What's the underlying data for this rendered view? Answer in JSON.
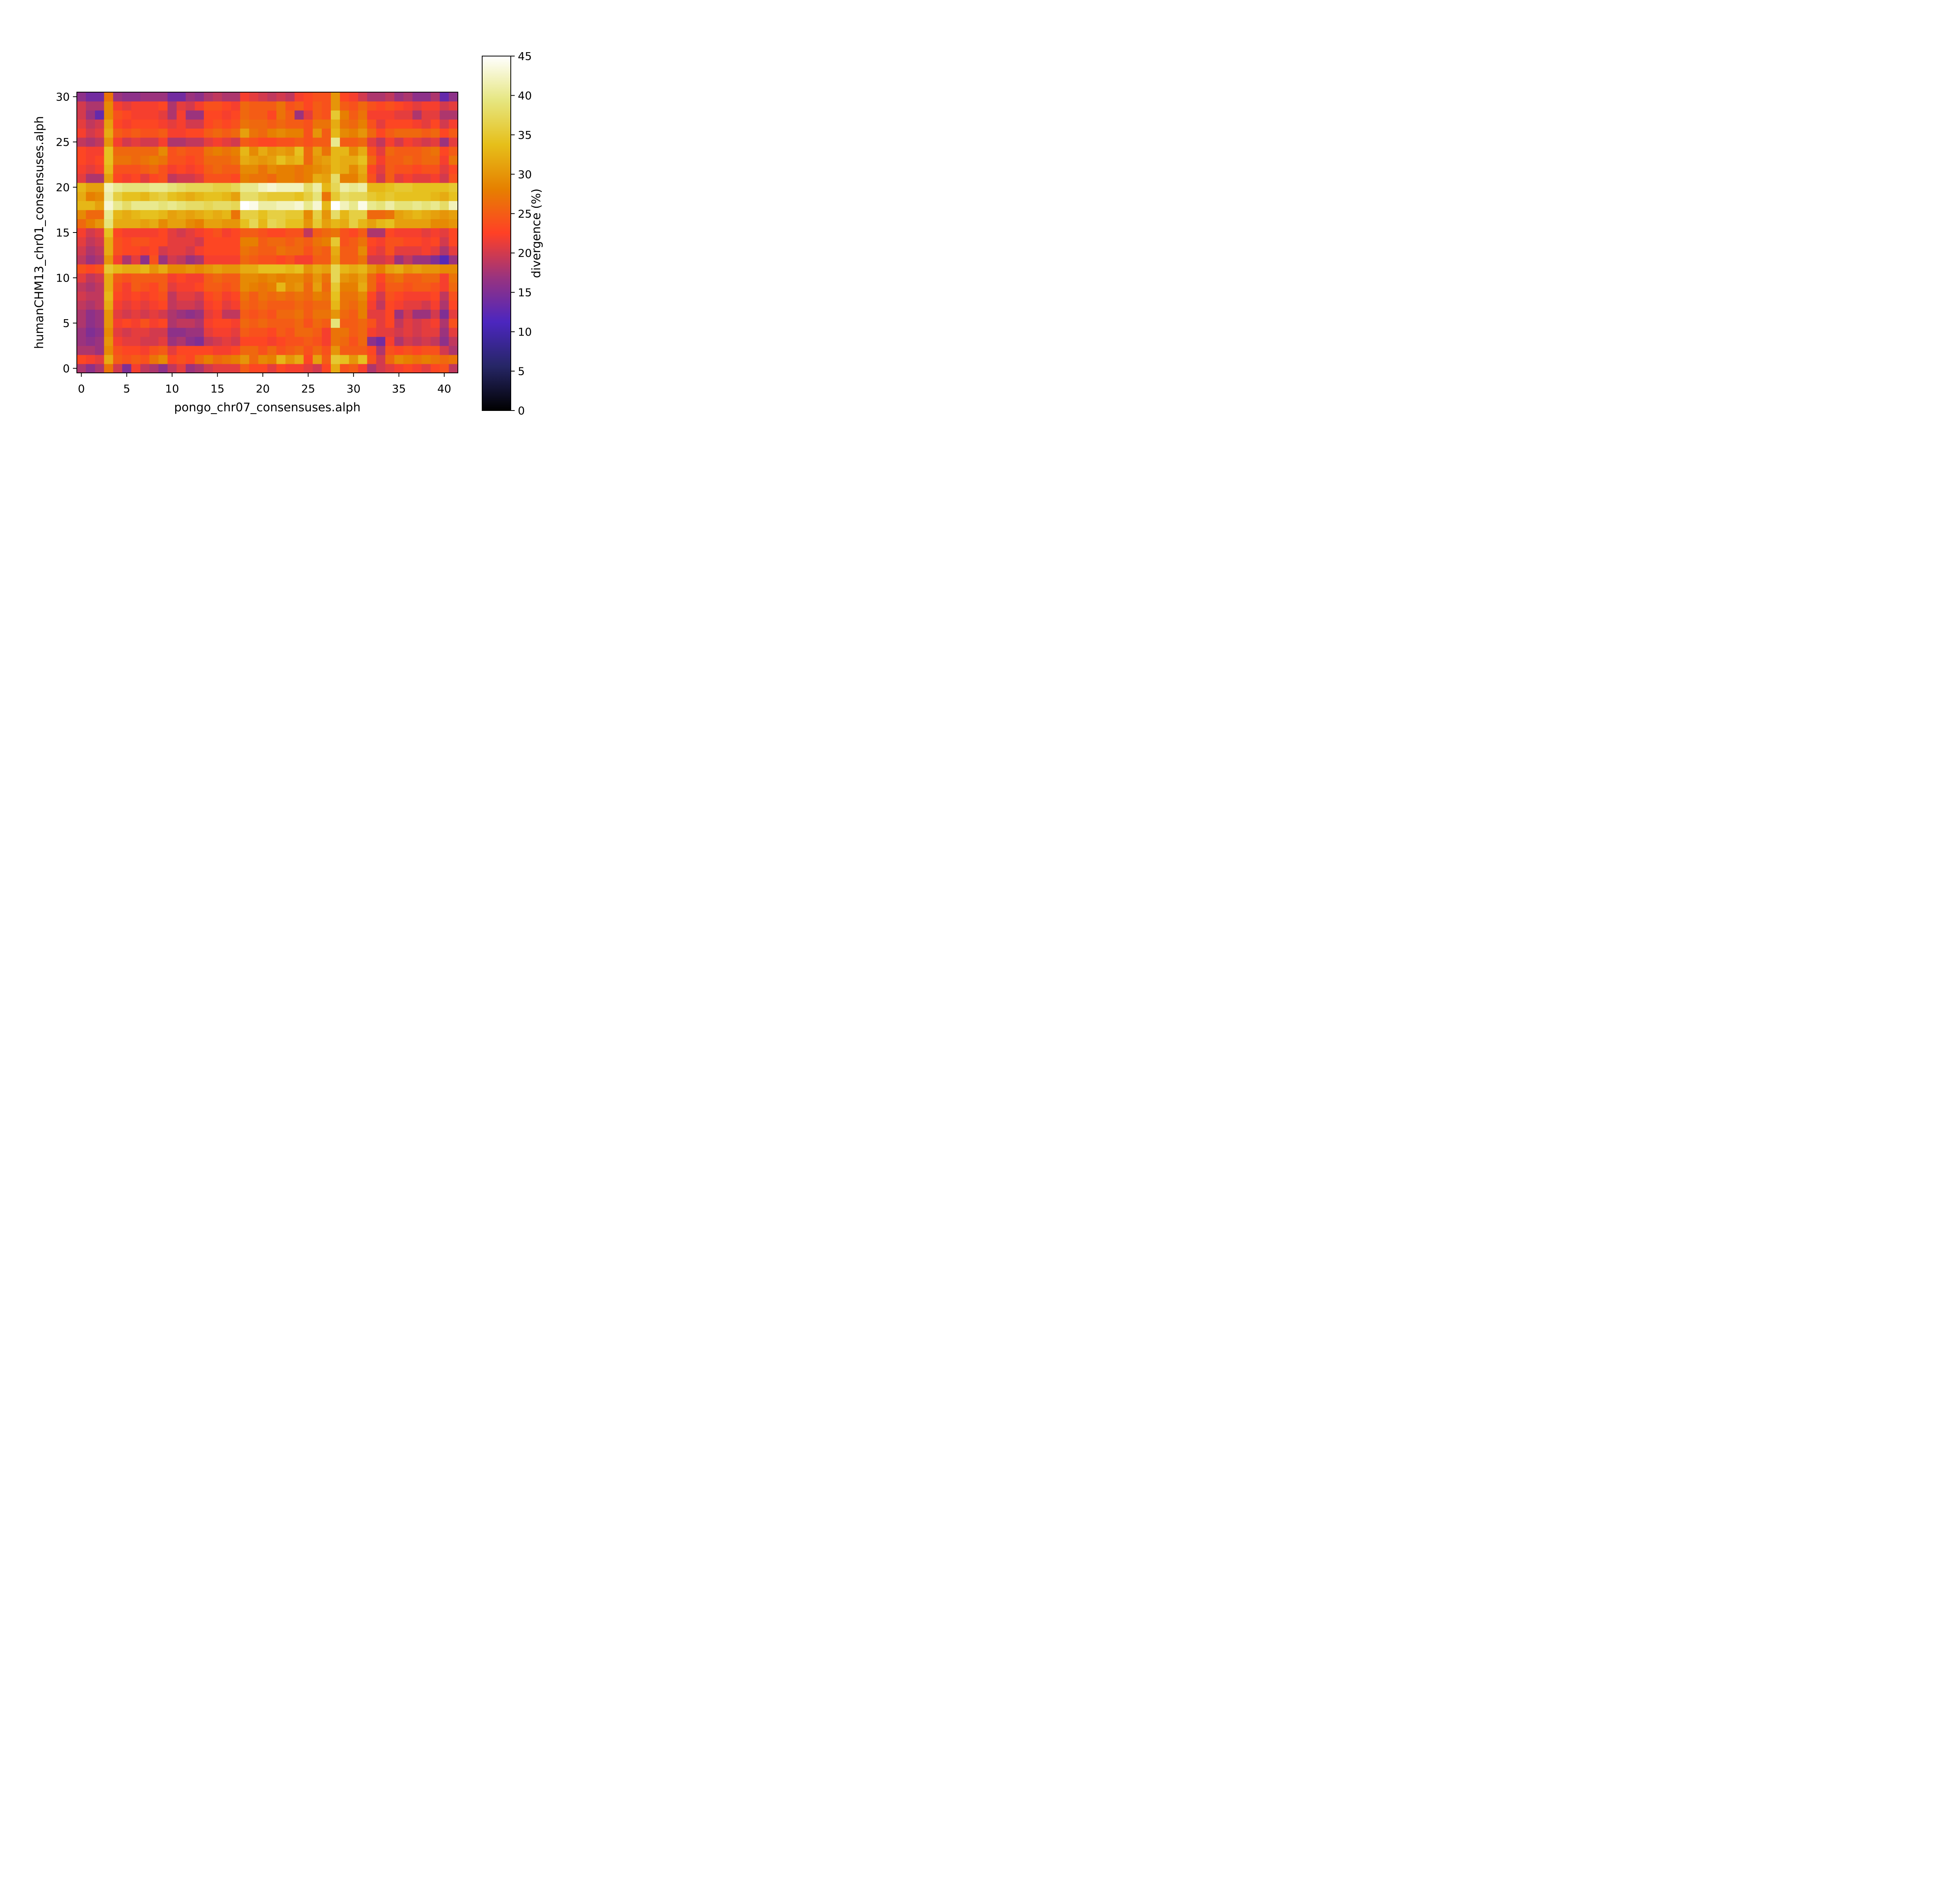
{
  "chart_data": {
    "type": "heatmap",
    "title": "",
    "xlabel": "pongo_chr07_consensuses.alph",
    "ylabel": "humanCHM13_chr01_consensuses.alph",
    "x_range": [
      0,
      41
    ],
    "y_range": [
      0,
      30
    ],
    "x_ticks": [
      0,
      5,
      10,
      15,
      20,
      25,
      30,
      35,
      40
    ],
    "y_ticks": [
      0,
      5,
      10,
      15,
      20,
      25,
      30
    ],
    "colormap": "CMRmap",
    "colorbar": {
      "label": "divergence (%)",
      "range": [
        0,
        45
      ],
      "ticks": [
        0,
        5,
        10,
        15,
        20,
        25,
        30,
        35,
        40,
        45
      ]
    },
    "grid": false,
    "values": [
      [
        18,
        16,
        18,
        27,
        20,
        15,
        22,
        19,
        18,
        16,
        19,
        21,
        17,
        18,
        20,
        21,
        21,
        21,
        25,
        23,
        23,
        21,
        23,
        22,
        22,
        21,
        20,
        23,
        32,
        24,
        25,
        22,
        18,
        20,
        21,
        22,
        23,
        22,
        21,
        23,
        24,
        19
      ],
      [
        23,
        22,
        21,
        32,
        25,
        24,
        25,
        24,
        27,
        29,
        23,
        24,
        23,
        26,
        28,
        26,
        27,
        28,
        30,
        26,
        29,
        28,
        33,
        30,
        32,
        23,
        31,
        25,
        35,
        34,
        30,
        34,
        24,
        20,
        26,
        29,
        28,
        27,
        28,
        27,
        26,
        27
      ],
      [
        18,
        18,
        17,
        29,
        24,
        23,
        23,
        22,
        24,
        25,
        21,
        23,
        23,
        23,
        23,
        22,
        22,
        23,
        26,
        26,
        24,
        26,
        24,
        25,
        26,
        24,
        26,
        24,
        30,
        25,
        25,
        25,
        23,
        18,
        24,
        23,
        24,
        23,
        24,
        24,
        20,
        18
      ],
      [
        17,
        16,
        17,
        30,
        22,
        21,
        21,
        20,
        20,
        21,
        17,
        18,
        16,
        15,
        19,
        20,
        21,
        20,
        23,
        23,
        23,
        22,
        23,
        24,
        24,
        25,
        24,
        22,
        27,
        26,
        24,
        26,
        16,
        14,
        22,
        18,
        20,
        19,
        20,
        19,
        16,
        19
      ],
      [
        17,
        15,
        16,
        29,
        21,
        20,
        21,
        21,
        20,
        20,
        16,
        16,
        17,
        17,
        21,
        22,
        22,
        21,
        25,
        24,
        24,
        23,
        25,
        24,
        26,
        26,
        25,
        22,
        27,
        27,
        25,
        26,
        22,
        21,
        21,
        20,
        21,
        20,
        21,
        21,
        17,
        21
      ],
      [
        18,
        16,
        17,
        30,
        22,
        23,
        22,
        24,
        22,
        23,
        18,
        19,
        19,
        18,
        22,
        23,
        23,
        22,
        26,
        25,
        26,
        25,
        25,
        25,
        26,
        24,
        26,
        25,
        39,
        25,
        25,
        26,
        24,
        21,
        23,
        19,
        21,
        20,
        21,
        22,
        18,
        24
      ],
      [
        18,
        16,
        17,
        30,
        21,
        20,
        21,
        20,
        21,
        20,
        18,
        17,
        16,
        17,
        21,
        22,
        19,
        19,
        25,
        24,
        25,
        24,
        26,
        26,
        27,
        25,
        27,
        27,
        30,
        26,
        25,
        28,
        21,
        21,
        23,
        17,
        20,
        17,
        17,
        20,
        15,
        21
      ],
      [
        19,
        18,
        19,
        32,
        22,
        21,
        22,
        21,
        22,
        23,
        19,
        20,
        20,
        19,
        22,
        23,
        21,
        22,
        26,
        25,
        26,
        25,
        25,
        25,
        26,
        25,
        26,
        26,
        33,
        27,
        26,
        28,
        22,
        19,
        23,
        22,
        21,
        21,
        20,
        22,
        18,
        23
      ],
      [
        20,
        19,
        19,
        33,
        23,
        22,
        23,
        22,
        23,
        24,
        19,
        21,
        21,
        20,
        23,
        24,
        22,
        23,
        27,
        25,
        27,
        26,
        27,
        26,
        27,
        26,
        28,
        27,
        34,
        27,
        27,
        29,
        23,
        20,
        24,
        23,
        22,
        22,
        22,
        23,
        19,
        24
      ],
      [
        19,
        18,
        19,
        32,
        24,
        22,
        25,
        24,
        23,
        25,
        21,
        22,
        22,
        23,
        25,
        25,
        24,
        25,
        29,
        28,
        27,
        28,
        33,
        29,
        30,
        26,
        31,
        26,
        35,
        28,
        28,
        32,
        26,
        22,
        25,
        25,
        24,
        25,
        25,
        24,
        22,
        26
      ],
      [
        21,
        19,
        20,
        32,
        25,
        24,
        25,
        25,
        25,
        25,
        22,
        23,
        22,
        22,
        25,
        26,
        25,
        25,
        29,
        29,
        28,
        29,
        28,
        29,
        29,
        27,
        30,
        27,
        37,
        30,
        29,
        31,
        26,
        23,
        26,
        27,
        25,
        25,
        26,
        26,
        22,
        27
      ],
      [
        24,
        23,
        24,
        35,
        33,
        32,
        32,
        33,
        30,
        32,
        29,
        29,
        30,
        29,
        30,
        31,
        30,
        30,
        32,
        32,
        34,
        34,
        34,
        33,
        34,
        30,
        32,
        31,
        37,
        33,
        32,
        33,
        30,
        28,
        31,
        32,
        30,
        31,
        30,
        30,
        29,
        29
      ],
      [
        19,
        17,
        18,
        30,
        22,
        18,
        21,
        16,
        24,
        17,
        20,
        19,
        17,
        18,
        22,
        22,
        22,
        22,
        26,
        25,
        24,
        24,
        23,
        24,
        22,
        22,
        25,
        25,
        31,
        25,
        25,
        27,
        20,
        20,
        21,
        17,
        19,
        17,
        17,
        15,
        12,
        17
      ],
      [
        20,
        18,
        19,
        32,
        24,
        23,
        23,
        22,
        23,
        20,
        21,
        21,
        20,
        22,
        23,
        23,
        23,
        23,
        27,
        26,
        25,
        25,
        27,
        26,
        26,
        24,
        26,
        25,
        32,
        25,
        25,
        29,
        22,
        21,
        24,
        21,
        21,
        21,
        22,
        21,
        18,
        21
      ],
      [
        21,
        19,
        20,
        32,
        24,
        23,
        24,
        24,
        23,
        23,
        21,
        21,
        21,
        20,
        23,
        23,
        23,
        23,
        28,
        28,
        25,
        26,
        26,
        25,
        26,
        25,
        27,
        28,
        35,
        24,
        25,
        27,
        23,
        22,
        24,
        24,
        23,
        23,
        22,
        23,
        20,
        23
      ],
      [
        22,
        20,
        21,
        34,
        23,
        22,
        22,
        22,
        22,
        23,
        21,
        20,
        21,
        22,
        23,
        24,
        22,
        23,
        25,
        25,
        24,
        23,
        23,
        24,
        24,
        19,
        25,
        26,
        27,
        24,
        23,
        25,
        18,
        18,
        23,
        22,
        22,
        22,
        21,
        22,
        21,
        23
      ],
      [
        26,
        28,
        30,
        39,
        32,
        32,
        32,
        31,
        32,
        29,
        31,
        31,
        29,
        28,
        31,
        31,
        30,
        30,
        34,
        37,
        33,
        37,
        36,
        34,
        34,
        30,
        35,
        31,
        33,
        32,
        36,
        33,
        31,
        33,
        34,
        31,
        31,
        31,
        31,
        29,
        29,
        30
      ],
      [
        29,
        26,
        26,
        40,
        33,
        32,
        33,
        34,
        34,
        33,
        31,
        32,
        31,
        32,
        33,
        32,
        33,
        27,
        36,
        36,
        34,
        36,
        36,
        35,
        35,
        29,
        36,
        30,
        38,
        33,
        36,
        36,
        26,
        26,
        27,
        31,
        32,
        33,
        32,
        31,
        30,
        31
      ],
      [
        33,
        33,
        31,
        43,
        40,
        38,
        40,
        40,
        40,
        39,
        40,
        39,
        38,
        38,
        37,
        38,
        38,
        37,
        45,
        44,
        41,
        41,
        42,
        42,
        43,
        40,
        43,
        33,
        45,
        42,
        40,
        44,
        40,
        39,
        41,
        39,
        39,
        40,
        39,
        40,
        38,
        42
      ],
      [
        32,
        28,
        29,
        41,
        36,
        34,
        34,
        33,
        35,
        36,
        34,
        33,
        32,
        33,
        34,
        34,
        33,
        31,
        38,
        38,
        36,
        35,
        35,
        35,
        34,
        36,
        39,
        27,
        35,
        38,
        37,
        37,
        35,
        34,
        35,
        34,
        34,
        34,
        34,
        33,
        32,
        34
      ],
      [
        33,
        31,
        31,
        42,
        40,
        39,
        39,
        39,
        40,
        40,
        39,
        38,
        37,
        37,
        37,
        36,
        36,
        37,
        40,
        40,
        42,
        43,
        42,
        42,
        42,
        38,
        41,
        33,
        37,
        41,
        40,
        41,
        33,
        33,
        34,
        35,
        35,
        34,
        34,
        34,
        34,
        35
      ],
      [
        21,
        18,
        18,
        31,
        23,
        22,
        23,
        21,
        23,
        24,
        19,
        20,
        20,
        21,
        24,
        24,
        24,
        23,
        28,
        27,
        27,
        26,
        28,
        28,
        27,
        28,
        32,
        31,
        38,
        28,
        28,
        31,
        24,
        20,
        25,
        21,
        22,
        21,
        21,
        22,
        20,
        24
      ],
      [
        22,
        21,
        22,
        33,
        24,
        24,
        24,
        25,
        26,
        24,
        22,
        23,
        22,
        23,
        25,
        26,
        25,
        25,
        29,
        29,
        27,
        29,
        28,
        28,
        27,
        28,
        29,
        30,
        33,
        32,
        29,
        32,
        23,
        21,
        25,
        24,
        24,
        23,
        24,
        24,
        21,
        23
      ],
      [
        23,
        22,
        23,
        34,
        27,
        27,
        26,
        27,
        28,
        27,
        24,
        24,
        23,
        24,
        26,
        26,
        26,
        27,
        32,
        31,
        30,
        31,
        34,
        32,
        33,
        26,
        30,
        31,
        33,
        32,
        32,
        34,
        26,
        22,
        25,
        25,
        26,
        25,
        26,
        26,
        22,
        27
      ],
      [
        23,
        22,
        22,
        34,
        26,
        26,
        26,
        26,
        26,
        29,
        24,
        25,
        24,
        24,
        27,
        28,
        27,
        28,
        33,
        29,
        32,
        30,
        31,
        30,
        34,
        26,
        31,
        27,
        33,
        33,
        29,
        32,
        24,
        21,
        26,
        25,
        25,
        25,
        26,
        27,
        23,
        25
      ],
      [
        19,
        18,
        19,
        30,
        22,
        20,
        21,
        20,
        20,
        22,
        18,
        18,
        19,
        19,
        21,
        22,
        21,
        20,
        25,
        24,
        23,
        23,
        24,
        24,
        25,
        24,
        25,
        25,
        40,
        25,
        25,
        26,
        21,
        19,
        22,
        20,
        22,
        21,
        20,
        21,
        17,
        21
      ],
      [
        22,
        20,
        21,
        32,
        25,
        24,
        25,
        24,
        24,
        25,
        22,
        22,
        23,
        23,
        25,
        26,
        25,
        26,
        31,
        27,
        26,
        28,
        29,
        28,
        28,
        24,
        30,
        25,
        33,
        29,
        28,
        30,
        26,
        23,
        25,
        26,
        26,
        26,
        25,
        26,
        23,
        25
      ],
      [
        21,
        19,
        20,
        31,
        23,
        22,
        23,
        23,
        23,
        22,
        21,
        22,
        20,
        20,
        23,
        24,
        23,
        24,
        27,
        26,
        26,
        25,
        26,
        25,
        25,
        24,
        27,
        27,
        32,
        27,
        26,
        28,
        24,
        21,
        23,
        23,
        23,
        22,
        21,
        23,
        20,
        22
      ],
      [
        20,
        17,
        13,
        29,
        24,
        23,
        22,
        22,
        22,
        21,
        18,
        22,
        17,
        17,
        23,
        23,
        22,
        23,
        26,
        25,
        25,
        23,
        27,
        25,
        17,
        21,
        25,
        24,
        35,
        28,
        25,
        27,
        22,
        22,
        22,
        21,
        21,
        18,
        21,
        21,
        18,
        18
      ],
      [
        20,
        18,
        18,
        29,
        22,
        21,
        22,
        22,
        22,
        23,
        18,
        21,
        20,
        22,
        24,
        24,
        23,
        22,
        26,
        25,
        25,
        25,
        27,
        24,
        25,
        23,
        25,
        24,
        30,
        25,
        24,
        26,
        24,
        23,
        24,
        23,
        22,
        21,
        22,
        22,
        20,
        21
      ],
      [
        16,
        14,
        14,
        27,
        17,
        16,
        16,
        17,
        17,
        17,
        14,
        14,
        17,
        16,
        18,
        19,
        18,
        18,
        22,
        21,
        20,
        19,
        20,
        19,
        22,
        23,
        24,
        24,
        30,
        23,
        22,
        20,
        18,
        18,
        19,
        17,
        18,
        16,
        16,
        18,
        13,
        16
      ]
    ]
  }
}
